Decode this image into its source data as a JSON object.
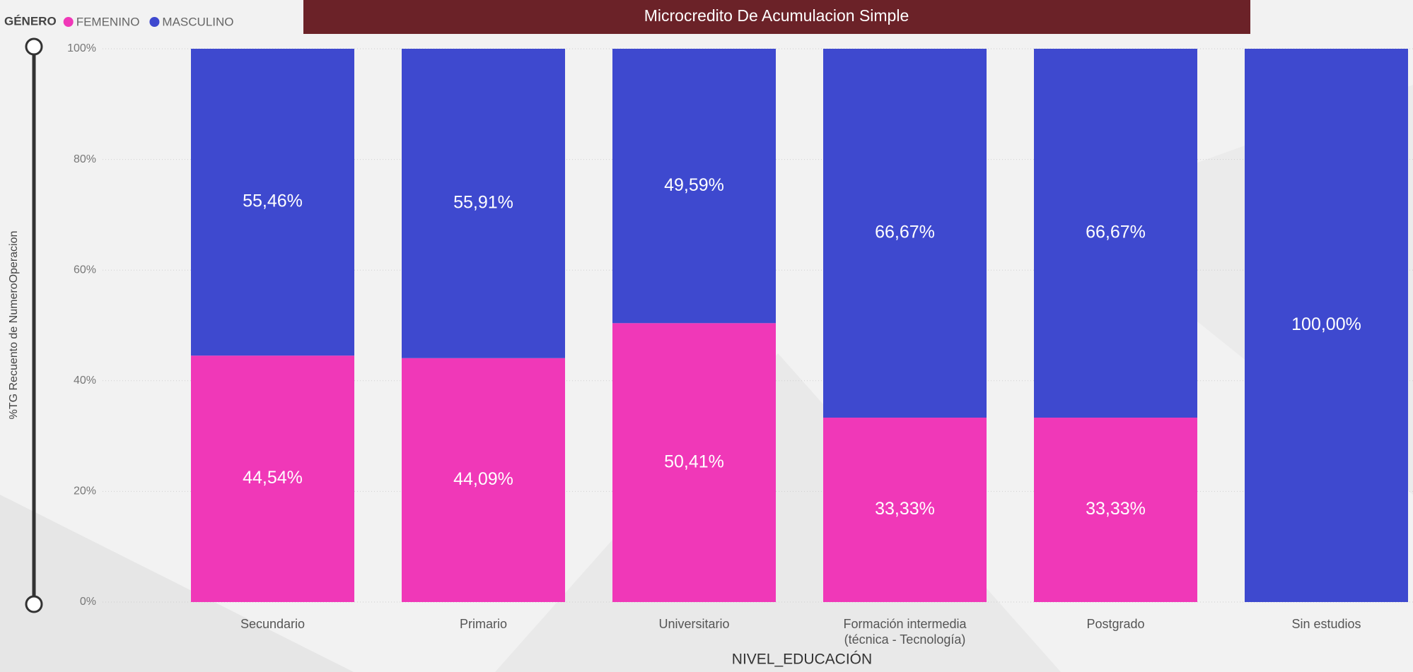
{
  "chart_data": {
    "type": "stacked_bar_100",
    "title": "Microcredito De Acumulacion Simple",
    "legend_title": "GÉNERO",
    "x_label": "NIVEL_EDUCACIÓN",
    "y_label": "%TG Recuento de NumeroOperacion",
    "categories": [
      "Secundario",
      "Primario",
      "Universitario",
      "Formación intermedia (técnica - Tecnología)",
      "Postgrado",
      "Sin estudios"
    ],
    "series": [
      {
        "name": "FEMENINO",
        "color": "#f038b8",
        "values": [
          44.54,
          44.09,
          50.41,
          33.33,
          33.33,
          0
        ],
        "value_labels": [
          "44,54%",
          "44,09%",
          "50,41%",
          "33,33%",
          "33,33%",
          null
        ]
      },
      {
        "name": "MASCULINO",
        "color": "#3e49cf",
        "values": [
          55.46,
          55.91,
          49.59,
          66.67,
          66.67,
          100
        ],
        "value_labels": [
          "55,46%",
          "55,91%",
          "49,59%",
          "66,67%",
          "66,67%",
          "100,00%"
        ]
      }
    ],
    "ylim": [
      0,
      100
    ],
    "yticks": [
      {
        "value": 0,
        "label": "0%"
      },
      {
        "value": 20,
        "label": "20%"
      },
      {
        "value": 40,
        "label": "40%"
      },
      {
        "value": 60,
        "label": "60%"
      },
      {
        "value": 80,
        "label": "80%"
      },
      {
        "value": 100,
        "label": "100%"
      }
    ],
    "grid": true,
    "legend_position": "top-left"
  }
}
